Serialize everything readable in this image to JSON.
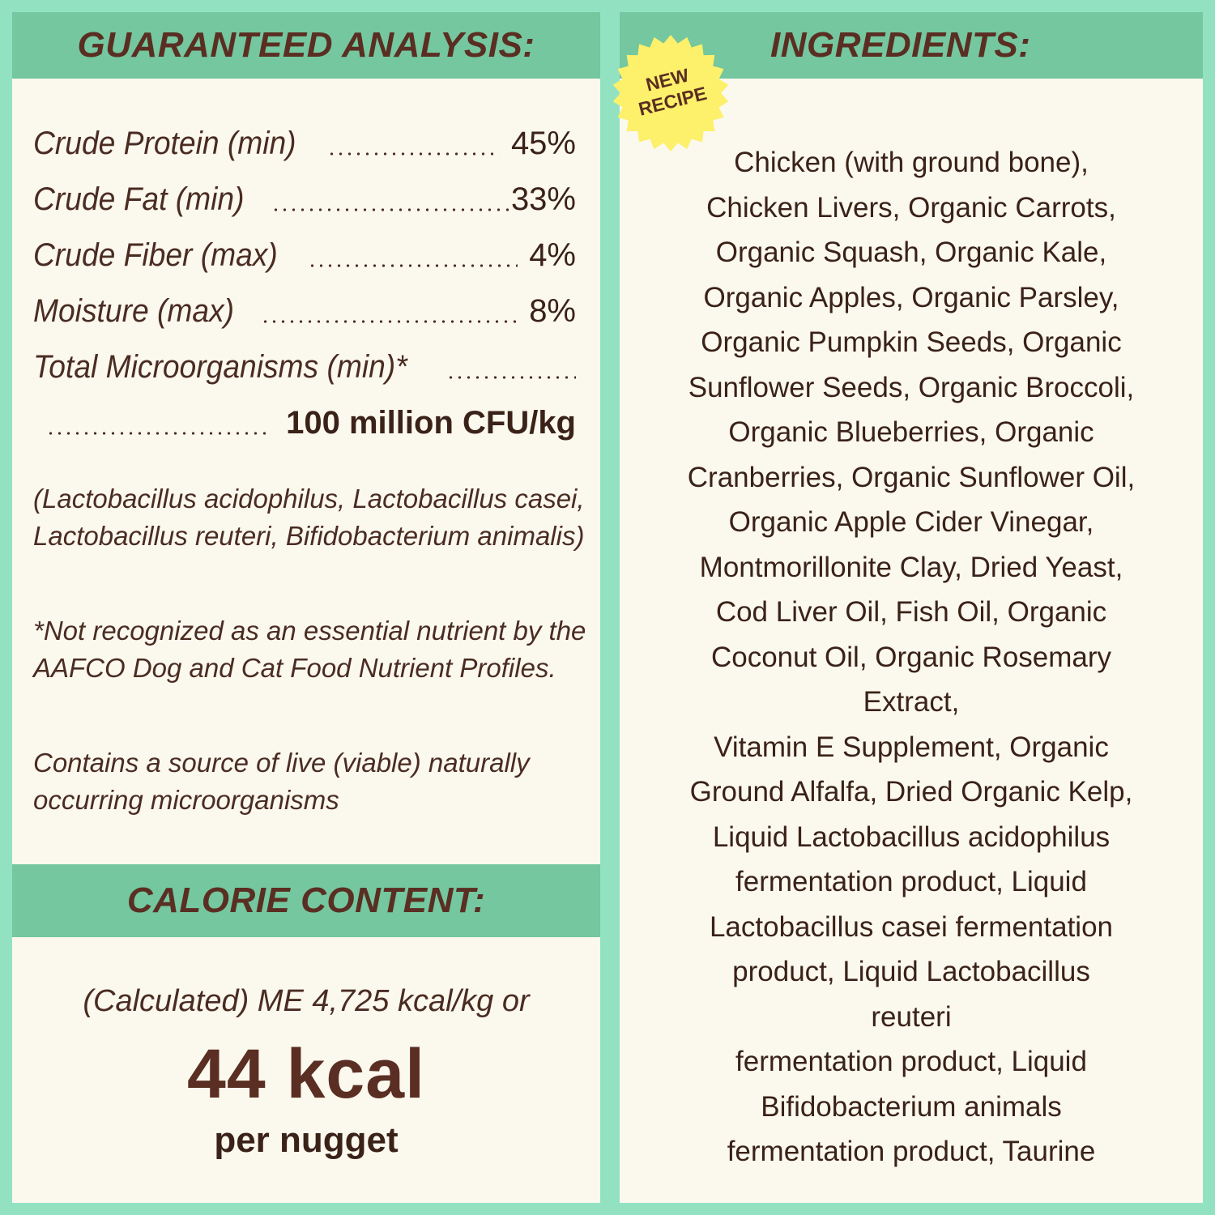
{
  "guaranteed_analysis": {
    "title": "GUARANTEED ANALYSIS:",
    "rows": [
      {
        "label": "Crude Protein (min)",
        "value": "45%"
      },
      {
        "label": "Crude Fat (min)",
        "value": "33%"
      },
      {
        "label": "Crude Fiber (max)",
        "value": "4%"
      },
      {
        "label": "Moisture (max)",
        "value": "8%"
      },
      {
        "label": "Total Microorganisms (min)*",
        "value": ""
      },
      {
        "label": "",
        "value": "100 million CFU/kg"
      }
    ],
    "strains_note": "(Lactobacillus acidophilus, Lactobacillus casei, Lactobacillus reuteri, Bifidobacterium animalis)",
    "aafco_note": "*Not recognized as an essential nutrient by the AAFCO Dog and Cat Food Nutrient Profiles.",
    "live_note": "Contains a source of live (viable) naturally occurring microorganisms"
  },
  "calorie_content": {
    "title": "CALORIE CONTENT:",
    "calculated": "(Calculated) ME 4,725 kcal/kg or",
    "per_unit_value": "44 kcal",
    "per_unit_label": "per nugget"
  },
  "ingredients": {
    "title": "INGREDIENTS:",
    "badge": [
      "NEW",
      "RECIPE"
    ],
    "lines": [
      "Chicken (with ground bone),",
      "Chicken Livers, Organic Carrots,",
      "Organic Squash, Organic Kale,",
      "Organic Apples, Organic Parsley,",
      "Organic Pumpkin Seeds, Organic",
      "Sunflower Seeds, Organic Broccoli,",
      "Organic Blueberries, Organic",
      "Cranberries, Organic Sunflower Oil,",
      "Organic Apple Cider Vinegar,",
      "Montmorillonite Clay, Dried Yeast,",
      "Cod Liver Oil, Fish Oil, Organic",
      "Coconut Oil, Organic Rosemary",
      "Extract,",
      "Vitamin E Supplement, Organic",
      "Ground Alfalfa, Dried Organic Kelp,",
      "Liquid Lactobacillus acidophilus",
      "fermentation product, Liquid",
      "Lactobacillus casei fermentation",
      "product, Liquid Lactobacillus",
      "reuteri",
      "fermentation product, Liquid",
      "Bifidobacterium animals",
      "fermentation product, Taurine"
    ]
  },
  "colors": {
    "background": "#92e2c2",
    "band": "#74c79e",
    "panel": "#fbf8ee",
    "text": "#5a2e22",
    "badge": "#fdf06a"
  }
}
